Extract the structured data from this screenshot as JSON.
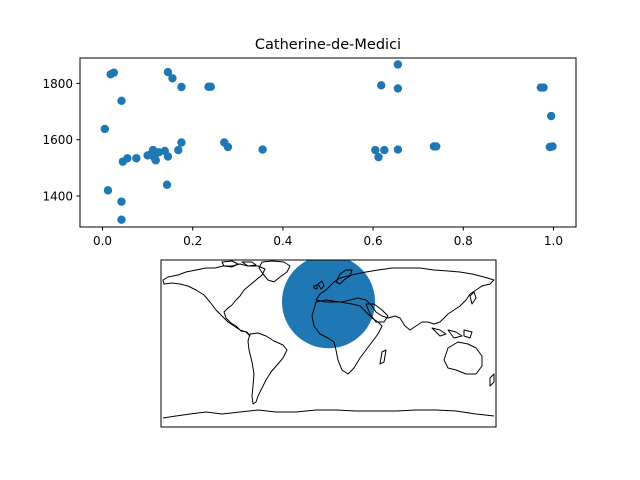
{
  "chart_data": [
    {
      "type": "scatter",
      "title": "Catherine-de-Medici",
      "xlabel": "",
      "ylabel": "",
      "xlim": [
        -0.05,
        1.05
      ],
      "ylim": [
        1290,
        1890
      ],
      "xticks": [
        0.0,
        0.2,
        0.4,
        0.6,
        0.8,
        1.0
      ],
      "xtick_labels": [
        "0.0",
        "0.2",
        "0.4",
        "0.6",
        "0.8",
        "1.0"
      ],
      "yticks": [
        1400,
        1600,
        1800
      ],
      "ytick_labels": [
        "1400",
        "1600",
        "1800"
      ],
      "grid": false,
      "color": "#1f77b4",
      "points": [
        {
          "x": 0.005,
          "y": 1638
        },
        {
          "x": 0.012,
          "y": 1420
        },
        {
          "x": 0.018,
          "y": 1832
        },
        {
          "x": 0.025,
          "y": 1838
        },
        {
          "x": 0.042,
          "y": 1738
        },
        {
          "x": 0.042,
          "y": 1380
        },
        {
          "x": 0.042,
          "y": 1316
        },
        {
          "x": 0.045,
          "y": 1522
        },
        {
          "x": 0.055,
          "y": 1534
        },
        {
          "x": 0.075,
          "y": 1534
        },
        {
          "x": 0.1,
          "y": 1544
        },
        {
          "x": 0.11,
          "y": 1553
        },
        {
          "x": 0.112,
          "y": 1563
        },
        {
          "x": 0.115,
          "y": 1536
        },
        {
          "x": 0.118,
          "y": 1527
        },
        {
          "x": 0.125,
          "y": 1555
        },
        {
          "x": 0.138,
          "y": 1560
        },
        {
          "x": 0.145,
          "y": 1540
        },
        {
          "x": 0.143,
          "y": 1440
        },
        {
          "x": 0.145,
          "y": 1840
        },
        {
          "x": 0.155,
          "y": 1818
        },
        {
          "x": 0.168,
          "y": 1563
        },
        {
          "x": 0.175,
          "y": 1590
        },
        {
          "x": 0.175,
          "y": 1787
        },
        {
          "x": 0.235,
          "y": 1788
        },
        {
          "x": 0.24,
          "y": 1788
        },
        {
          "x": 0.27,
          "y": 1590
        },
        {
          "x": 0.278,
          "y": 1574
        },
        {
          "x": 0.355,
          "y": 1565
        },
        {
          "x": 0.605,
          "y": 1563
        },
        {
          "x": 0.612,
          "y": 1538
        },
        {
          "x": 0.618,
          "y": 1793
        },
        {
          "x": 0.625,
          "y": 1563
        },
        {
          "x": 0.655,
          "y": 1867
        },
        {
          "x": 0.655,
          "y": 1782
        },
        {
          "x": 0.655,
          "y": 1565
        },
        {
          "x": 0.735,
          "y": 1576
        },
        {
          "x": 0.74,
          "y": 1576
        },
        {
          "x": 0.972,
          "y": 1785
        },
        {
          "x": 0.978,
          "y": 1785
        },
        {
          "x": 0.992,
          "y": 1574
        },
        {
          "x": 0.995,
          "y": 1684
        },
        {
          "x": 0.998,
          "y": 1576
        }
      ]
    },
    {
      "type": "map",
      "projection": "plate-carree",
      "xlim": [
        -180,
        180
      ],
      "ylim": [
        -90,
        90
      ],
      "marker": {
        "lon": 0,
        "lat": 45,
        "radius_deg": 50,
        "color": "#1f77b4"
      },
      "coastlines": true
    }
  ]
}
